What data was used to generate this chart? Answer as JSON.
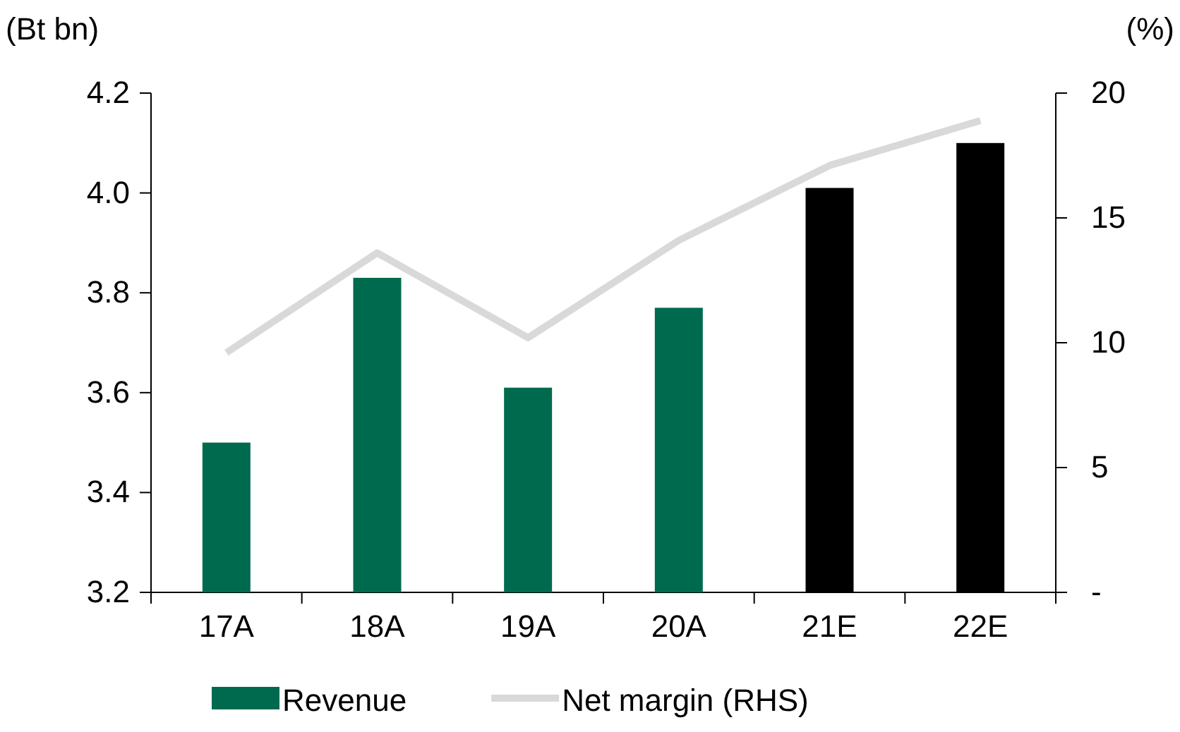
{
  "chart_data": {
    "type": "bar",
    "ylabel": "(Bt bn)",
    "y2label": "(%)",
    "categories": [
      "17A",
      "18A",
      "19A",
      "20A",
      "21E",
      "22E"
    ],
    "series": [
      {
        "name": "Revenue",
        "color": "#006a4e",
        "colors": [
          "#006a4e",
          "#006a4e",
          "#006a4e",
          "#006a4e",
          "#000000",
          "#000000"
        ],
        "values": [
          3.5,
          3.83,
          3.61,
          3.77,
          4.01,
          4.1
        ]
      },
      {
        "name": "Net margin (RHS)",
        "type": "line",
        "axis": "y2",
        "color": "#d9d9d9",
        "values": [
          9.6,
          13.6,
          10.2,
          14.1,
          17.1,
          18.9
        ]
      }
    ],
    "ylim": [
      3.2,
      4.2
    ],
    "yticks": [
      {
        "value": 3.2,
        "label": "3.2"
      },
      {
        "value": 3.4,
        "label": "3.4"
      },
      {
        "value": 3.6,
        "label": "3.6"
      },
      {
        "value": 3.8,
        "label": "3.8"
      },
      {
        "value": 4.0,
        "label": "4.0"
      },
      {
        "value": 4.2,
        "label": "4.2"
      }
    ],
    "y2lim": [
      0,
      20
    ],
    "y2ticks": [
      {
        "value": 0,
        "label": "-"
      },
      5,
      10,
      15,
      20
    ],
    "grid": false,
    "legend": "bottom",
    "marker": "none",
    "line_style": "solid"
  }
}
